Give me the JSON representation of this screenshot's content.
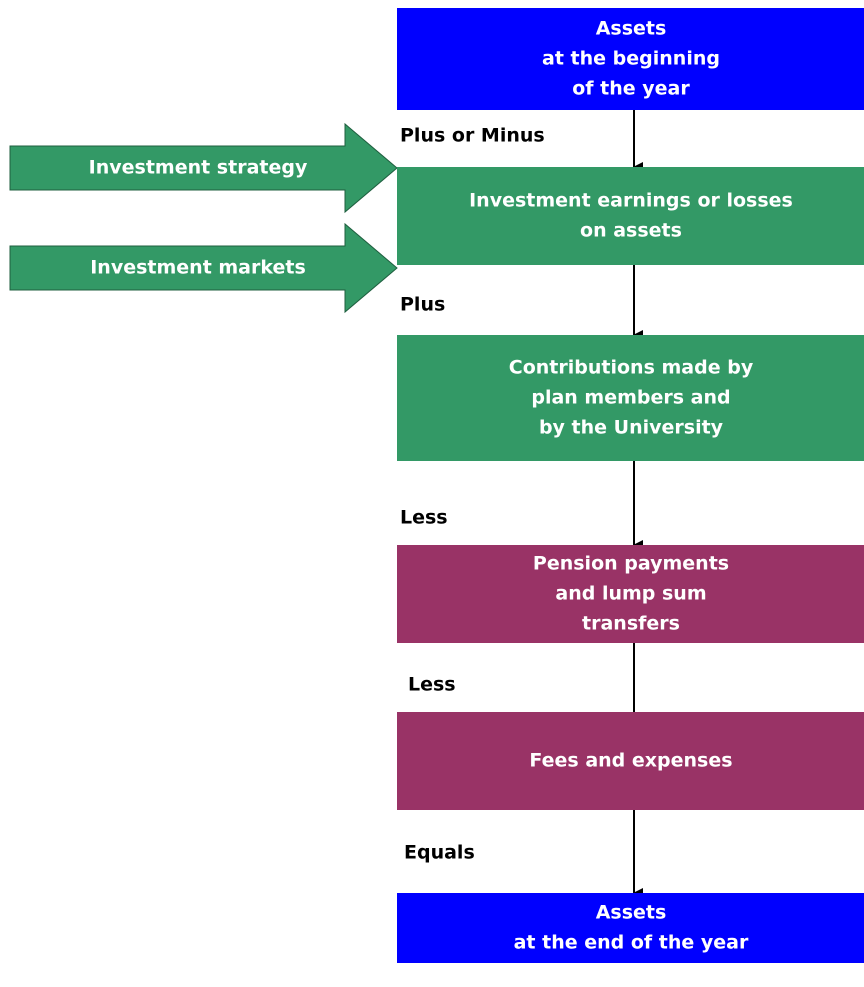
{
  "nodes": [
    {
      "lines": [
        "Assets",
        "at the beginning",
        "of the year"
      ]
    },
    {
      "lines": [
        "Investment earnings or losses",
        "on assets"
      ]
    },
    {
      "lines": [
        "Contributions made by",
        "plan members and",
        "by the University"
      ]
    },
    {
      "lines": [
        "Pension payments",
        "and lump sum",
        "transfers"
      ]
    },
    {
      "lines": [
        "Fees and expenses"
      ]
    },
    {
      "lines": [
        "Assets",
        "at the end of the year"
      ]
    }
  ],
  "connectors": [
    "Plus or Minus",
    "Plus",
    "Less",
    "Less",
    "Equals"
  ],
  "inputs": [
    "Investment strategy",
    "Investment markets"
  ]
}
